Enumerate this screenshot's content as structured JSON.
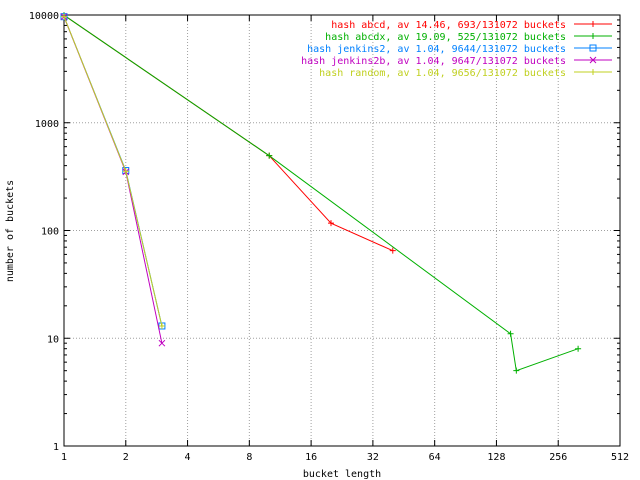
{
  "chart_data": {
    "type": "line",
    "title": "",
    "xlabel": "bucket length",
    "ylabel": "number of buckets",
    "xscale": "log2",
    "yscale": "log10",
    "xlim": [
      1,
      512
    ],
    "ylim": [
      1,
      10000
    ],
    "x_ticks": [
      1,
      2,
      4,
      8,
      16,
      32,
      64,
      128,
      256,
      512
    ],
    "x_tick_labels": [
      "1",
      "2",
      "4",
      "8",
      "16",
      "32",
      "64",
      "128",
      "256",
      "512"
    ],
    "y_ticks": [
      1,
      10,
      100,
      1000,
      10000
    ],
    "y_tick_labels": [
      "1",
      "10",
      "100",
      "1000",
      "10000"
    ],
    "grid": true,
    "legend_position": "top-right",
    "series": [
      {
        "name": "hash abcd, av 14.46, 693/131072 buckets",
        "color": "#ff0000",
        "marker": "plus",
        "points": [
          [
            1,
            9950
          ],
          [
            10,
            495
          ],
          [
            20,
            117
          ],
          [
            40,
            65
          ]
        ]
      },
      {
        "name": "hash abcdx, av 19.09, 525/131072 buckets",
        "color": "#00b000",
        "marker": "plus",
        "points": [
          [
            1,
            9950
          ],
          [
            10,
            495
          ],
          [
            150,
            11
          ],
          [
            160,
            5
          ],
          [
            320,
            8
          ]
        ]
      },
      {
        "name": "hash jenkins2, av 1.04, 9644/131072 buckets",
        "color": "#0080ff",
        "marker": "square",
        "points": [
          [
            1,
            9644
          ],
          [
            2,
            360
          ],
          [
            3,
            13
          ]
        ]
      },
      {
        "name": "hash jenkins2b, av 1.04, 9647/131072 buckets",
        "color": "#c000c0",
        "marker": "x",
        "points": [
          [
            1,
            9647
          ],
          [
            2,
            350
          ],
          [
            3,
            9
          ]
        ]
      },
      {
        "name": "hash random, av 1.04, 9656/131072 buckets",
        "color": "#c0d020",
        "marker": "plus",
        "points": [
          [
            1,
            9656
          ],
          [
            2,
            355
          ],
          [
            3,
            13
          ]
        ]
      }
    ]
  }
}
